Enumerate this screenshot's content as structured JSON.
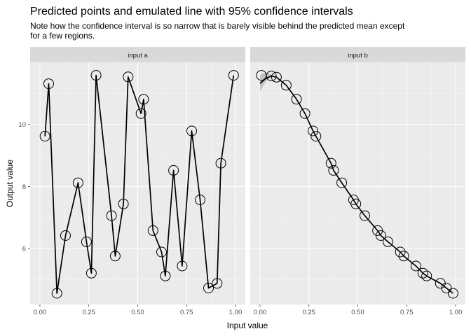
{
  "chart_data": {
    "type": "line",
    "title": "Predicted points and emulated line with 95% confidence intervals",
    "subtitle_lines": [
      "Note how the confidence interval is so narrow that is barely visible behind the predicted mean except",
      "for a few regions."
    ],
    "xlabel": "Input value",
    "ylabel": "Output value",
    "xlim": [
      -0.05,
      1.05
    ],
    "ylim": [
      4.2,
      12.0
    ],
    "x_ticks": [
      0.0,
      0.25,
      0.5,
      0.75,
      1.0
    ],
    "x_tick_labels": [
      "0.00",
      "0.25",
      "0.50",
      "0.75",
      "1.00"
    ],
    "y_ticks": [
      6,
      8,
      10
    ],
    "y_tick_labels": [
      "6",
      "8",
      "10"
    ],
    "grid": true,
    "colors": {
      "panel_bg": "#ebebeb",
      "strip_bg": "#d9d9d9",
      "grid_major": "#ffffff",
      "line": "#000000",
      "ribbon": "#bfbfbf"
    },
    "facets": [
      {
        "label": "input a",
        "points": {
          "x": [
            0.026,
            0.045,
            0.087,
            0.131,
            0.195,
            0.238,
            0.263,
            0.287,
            0.366,
            0.385,
            0.427,
            0.451,
            0.517,
            0.53,
            0.578,
            0.622,
            0.641,
            0.683,
            0.727,
            0.776,
            0.819,
            0.862,
            0.906,
            0.925,
            0.99
          ],
          "y": [
            9.62,
            11.31,
            4.56,
            6.42,
            8.12,
            6.22,
            5.21,
            11.58,
            7.06,
            5.76,
            7.44,
            11.53,
            10.35,
            10.81,
            6.58,
            5.89,
            5.12,
            8.52,
            5.44,
            9.79,
            7.57,
            4.73,
            4.88,
            8.75,
            11.58
          ]
        },
        "line": {
          "x": [
            0.026,
            0.045,
            0.087,
            0.131,
            0.195,
            0.238,
            0.263,
            0.287,
            0.366,
            0.385,
            0.427,
            0.451,
            0.517,
            0.53,
            0.578,
            0.622,
            0.641,
            0.683,
            0.727,
            0.776,
            0.819,
            0.862,
            0.906,
            0.925,
            0.99
          ],
          "y": [
            9.62,
            11.31,
            4.56,
            6.42,
            8.12,
            6.22,
            5.21,
            11.58,
            7.06,
            5.76,
            7.44,
            11.53,
            10.35,
            10.81,
            6.58,
            5.89,
            5.12,
            8.52,
            5.44,
            9.79,
            7.57,
            4.73,
            4.88,
            8.75,
            11.58
          ]
        }
      },
      {
        "label": "input b",
        "points": {
          "x": [
            0.007,
            0.058,
            0.084,
            0.134,
            0.187,
            0.23,
            0.271,
            0.286,
            0.363,
            0.376,
            0.418,
            0.478,
            0.49,
            0.536,
            0.601,
            0.618,
            0.654,
            0.717,
            0.735,
            0.797,
            0.833,
            0.852,
            0.922,
            0.953,
            0.987
          ],
          "y": [
            11.58,
            11.56,
            11.52,
            11.26,
            10.81,
            10.35,
            9.79,
            9.62,
            8.75,
            8.52,
            8.12,
            7.57,
            7.44,
            7.06,
            6.58,
            6.42,
            6.22,
            5.89,
            5.76,
            5.44,
            5.21,
            5.12,
            4.88,
            4.73,
            4.56
          ]
        },
        "line": {
          "x": [
            0.0,
            0.03,
            0.058,
            0.084,
            0.134,
            0.187,
            0.23,
            0.271,
            0.286,
            0.363,
            0.376,
            0.418,
            0.478,
            0.49,
            0.536,
            0.601,
            0.618,
            0.654,
            0.717,
            0.735,
            0.797,
            0.833,
            0.852,
            0.922,
            0.953,
            0.987
          ],
          "y": [
            11.32,
            11.48,
            11.56,
            11.52,
            11.26,
            10.81,
            10.35,
            9.79,
            9.62,
            8.75,
            8.52,
            8.12,
            7.57,
            7.44,
            7.06,
            6.58,
            6.42,
            6.22,
            5.89,
            5.76,
            5.44,
            5.21,
            5.12,
            4.88,
            4.73,
            4.56
          ]
        },
        "ribbon": {
          "x": [
            0.0,
            0.02,
            0.04,
            0.06
          ],
          "lower": [
            11.05,
            11.28,
            11.45,
            11.52
          ],
          "upper": [
            11.6,
            11.66,
            11.65,
            11.6
          ]
        }
      }
    ]
  }
}
